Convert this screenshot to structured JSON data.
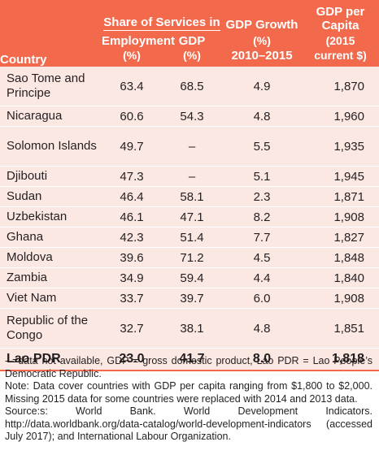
{
  "header": {
    "country": "Country",
    "share_group": "Share of Services in",
    "employment": "Employment",
    "employment_unit": "(%)",
    "gdp": "GDP",
    "gdp_unit": "(%)",
    "gdp_growth": "GDP Growth",
    "gdp_growth_unit": "(%)",
    "gdp_growth_period": "2010–2015",
    "gdp_per": "GDP per",
    "capita": "Capita",
    "capita_year": "(2015",
    "capita_unit": "current $)"
  },
  "rows": [
    {
      "country": "Sao Tome and Principe",
      "employment": "63.4",
      "gdp": "68.5",
      "growth": "4.9",
      "capita": "1,870"
    },
    {
      "country": "Nicaragua",
      "employment": "60.6",
      "gdp": "54.3",
      "growth": "4.8",
      "capita": "1,960"
    },
    {
      "country": "Solomon Islands",
      "employment": "49.7",
      "gdp": "–",
      "growth": "5.5",
      "capita": "1,935"
    },
    {
      "country": "Djibouti",
      "employment": "47.3",
      "gdp": "–",
      "growth": "5.1",
      "capita": "1,945"
    },
    {
      "country": "Sudan",
      "employment": "46.4",
      "gdp": "58.1",
      "growth": "2.3",
      "capita": "1,871"
    },
    {
      "country": "Uzbekistan",
      "employment": "46.1",
      "gdp": "47.1",
      "growth": "8.2",
      "capita": "1,908"
    },
    {
      "country": "Ghana",
      "employment": "42.3",
      "gdp": "51.4",
      "growth": "7.7",
      "capita": "1,827"
    },
    {
      "country": "Moldova",
      "employment": "39.6",
      "gdp": "71.2",
      "growth": "4.5",
      "capita": "1,848"
    },
    {
      "country": "Zambia",
      "employment": "34.9",
      "gdp": "59.4",
      "growth": "4.4",
      "capita": "1,840"
    },
    {
      "country": "Viet Nam",
      "employment": "33.7",
      "gdp": "39.7",
      "growth": "6.0",
      "capita": "1,908"
    },
    {
      "country": "Republic of the Congo",
      "employment": "32.7",
      "gdp": "38.1",
      "growth": "4.8",
      "capita": "1,851"
    },
    {
      "country": "Lao PDR",
      "employment": "23.0",
      "gdp": "41.7",
      "growth": "8.0",
      "capita": "1,818"
    }
  ],
  "notes": {
    "line1": "- =data not available, GDP = gross domestic product, Lao PDR = Lao People’s Democratic Republic.",
    "line2": "Note: Data cover countries with GDP per capita ranging from $1,800 to $2,000. Missing 2015 data for some countries were replaced with 2014 and 2013 data.",
    "line3": "Source:s: World Bank. World Development Indicators. http://data.worldbank.org/data-catalog/world-development-indicators (accessed July 2017); and International Labour Organization."
  }
}
